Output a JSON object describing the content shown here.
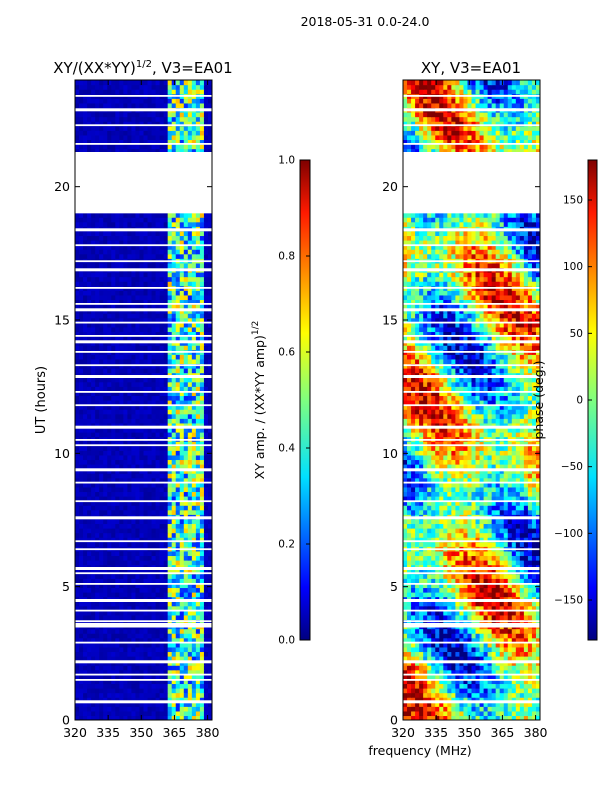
{
  "figure": {
    "suptitle": "2018-05-31 0.0-24.0"
  },
  "chart_data": [
    {
      "type": "heatmap",
      "title": "XY/(XX*YY)",
      "title_exponent": "1/2",
      "title_suffix": ", V3=EA01",
      "xlabel": "",
      "ylabel": "UT (hours)",
      "xlim": [
        320,
        382
      ],
      "ylim": [
        0,
        24
      ],
      "x_ticks": [
        320,
        335,
        350,
        365,
        380
      ],
      "y_ticks": [
        0,
        5,
        10,
        15,
        20
      ],
      "gap_hours": [
        [
          19.0,
          21.3
        ]
      ],
      "bright_band_mhz": [
        362,
        378
      ],
      "colorbar": {
        "label": "XY amp. / (XX*YY amp)",
        "label_exponent": "1/2",
        "range": [
          0.0,
          1.0
        ],
        "ticks": [
          0.0,
          0.2,
          0.4,
          0.6,
          0.8,
          1.0
        ],
        "tick_labels": [
          "0.0",
          "0.2",
          "0.4",
          "0.6",
          "0.8",
          "1.0"
        ],
        "colormap": "jet"
      }
    },
    {
      "type": "heatmap",
      "title": "XY, V3=EA01",
      "xlabel": "frequency (MHz)",
      "ylabel": "",
      "xlim": [
        320,
        382
      ],
      "ylim": [
        0,
        24
      ],
      "x_ticks": [
        320,
        335,
        350,
        365,
        380
      ],
      "y_ticks": [
        0,
        5,
        10,
        15,
        20
      ],
      "gap_hours": [
        [
          19.0,
          21.3
        ]
      ],
      "colorbar": {
        "label": "phase (deg.)",
        "range": [
          -180,
          180
        ],
        "ticks": [
          150,
          100,
          50,
          0,
          -50,
          -100,
          -150
        ],
        "tick_labels": [
          "150",
          "100",
          "50",
          "0",
          "−50",
          "−100",
          "−150"
        ],
        "colormap": "jet"
      }
    }
  ],
  "colors": {
    "jet_stops": [
      "#00007f",
      "#0000ff",
      "#007fff",
      "#00ffff",
      "#7fff7f",
      "#ffff00",
      "#ff7f00",
      "#ff0000",
      "#7f0000"
    ]
  }
}
